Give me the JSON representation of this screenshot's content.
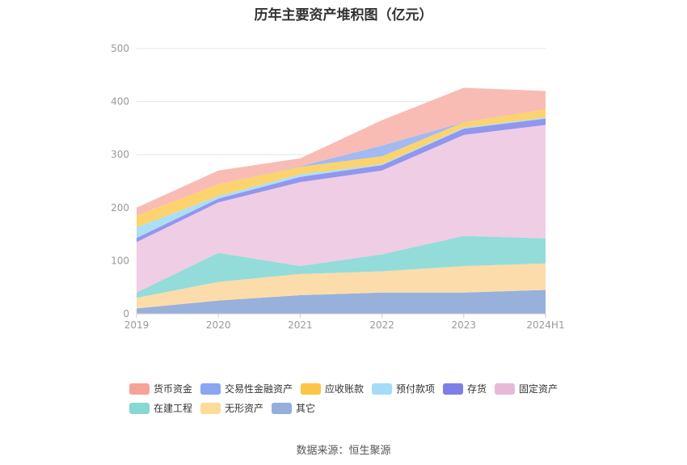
{
  "chart_data": {
    "type": "area",
    "stacked": true,
    "title": "历年主要资产堆积图（亿元）",
    "categories": [
      "2019",
      "2020",
      "2021",
      "2022",
      "2023",
      "2024H1"
    ],
    "ylim": [
      0,
      500
    ],
    "yticks": [
      0,
      100,
      200,
      300,
      400,
      500
    ],
    "grid": true,
    "legend_position": "bottom",
    "series": [
      {
        "name": "其它",
        "color": "#97b1dc",
        "values": [
          10,
          25,
          35,
          40,
          40,
          45
        ]
      },
      {
        "name": "无形资产",
        "color": "#fcdcaa",
        "values": [
          20,
          35,
          40,
          40,
          50,
          50
        ]
      },
      {
        "name": "在建工程",
        "color": "#93dcd9",
        "values": [
          10,
          55,
          15,
          32,
          57,
          47
        ]
      },
      {
        "name": "固定资产",
        "color": "#efcde4",
        "values": [
          95,
          95,
          158,
          158,
          190,
          214
        ]
      },
      {
        "name": "存货",
        "color": "#9296ee",
        "values": [
          8,
          7,
          10,
          10,
          12,
          12
        ]
      },
      {
        "name": "预付款项",
        "color": "#abdff6",
        "values": [
          20,
          5,
          5,
          2,
          2,
          2
        ]
      },
      {
        "name": "应收账款",
        "color": "#fcd36d",
        "values": [
          22,
          22,
          14,
          15,
          10,
          15
        ]
      },
      {
        "name": "交易性金融资产",
        "color": "#a2b9f3",
        "values": [
          0,
          0,
          1,
          20,
          0,
          0
        ]
      },
      {
        "name": "货币资金",
        "color": "#f8bcb4",
        "values": [
          15,
          26,
          15,
          48,
          65,
          35
        ]
      }
    ]
  },
  "legend": {
    "items": [
      {
        "name": "货币资金",
        "color": "#f7a298"
      },
      {
        "name": "交易性金融资产",
        "color": "#8aa5f2"
      },
      {
        "name": "应收账款",
        "color": "#fbc548"
      },
      {
        "name": "预付款项",
        "color": "#a4dcf7"
      },
      {
        "name": "存货",
        "color": "#7c7fe8"
      },
      {
        "name": "固定资产",
        "color": "#e7b9d8"
      },
      {
        "name": "在建工程",
        "color": "#86d8d2"
      },
      {
        "name": "无形资产",
        "color": "#fddc9a"
      },
      {
        "name": "其它",
        "color": "#95aedb"
      }
    ]
  },
  "footer": {
    "source": "数据来源：恒生聚源"
  }
}
